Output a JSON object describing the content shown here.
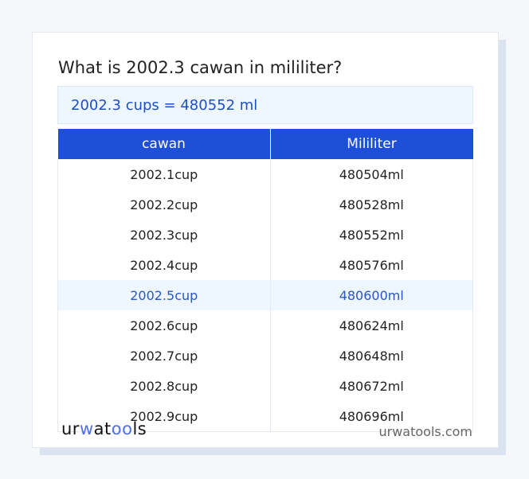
{
  "question": "What is 2002.3 cawan in mililiter?",
  "result": "2002.3 cups = 480552 ml",
  "table": {
    "headers": [
      "cawan",
      "Mililiter"
    ],
    "rows": [
      [
        "2002.1cup",
        "480504ml"
      ],
      [
        "2002.2cup",
        "480528ml"
      ],
      [
        "2002.3cup",
        "480552ml"
      ],
      [
        "2002.4cup",
        "480576ml"
      ],
      [
        "2002.5cup",
        "480600ml"
      ],
      [
        "2002.6cup",
        "480624ml"
      ],
      [
        "2002.7cup",
        "480648ml"
      ],
      [
        "2002.8cup",
        "480672ml"
      ],
      [
        "2002.9cup",
        "480696ml"
      ]
    ],
    "highlighted_row": 4
  },
  "footer": {
    "logo": {
      "part1": "ur",
      "part2": "w",
      "part3": "at",
      "part4": "oo",
      "part5": "ls"
    },
    "site": "urwatools.com"
  },
  "colors": {
    "accent": "#1d4fd8",
    "highlight_bg": "#eef6ff"
  }
}
